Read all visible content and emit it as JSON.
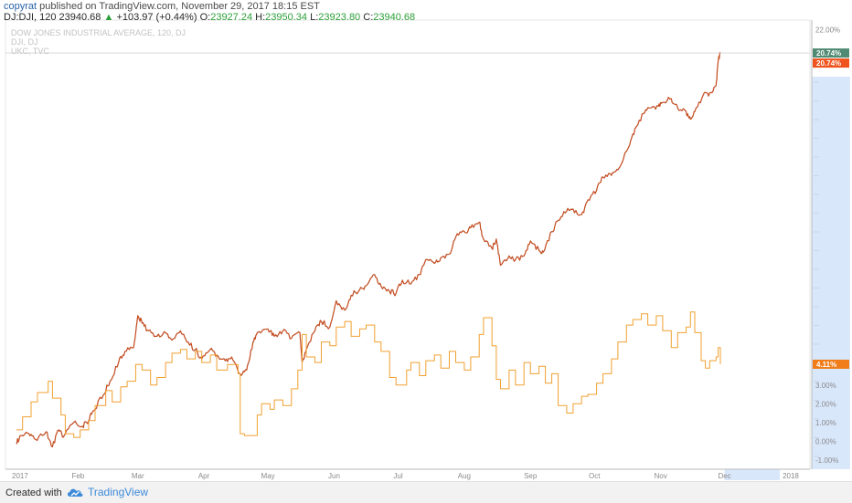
{
  "header": {
    "username": "copyrat",
    "published": "published on TradingView.com, November 29, 2017 18:15 EST",
    "symbol": "DJ:DJI, 120",
    "last": "23940.68",
    "change": "+103.97 (+0.44%)",
    "o_label": "O:",
    "o": "23927.24",
    "h_label": "H:",
    "h": "23950.34",
    "l_label": "L:",
    "l": "23923.80",
    "c_label": "C:",
    "c": "23940.68"
  },
  "legend": {
    "line1": "DOW JONES INDUSTRIAL AVERAGE, 120, DJ",
    "line2": "DJI, DJ",
    "line3": "UKC, TVC"
  },
  "footer": {
    "created_with": "Created with",
    "brand": "TradingView"
  },
  "colors": {
    "dji": "#b34018",
    "dji_highlight": "#f0642a",
    "ukc": "#f0a030",
    "badge_dji_1": "#4f8a73",
    "badge_dji_2": "#f0541e",
    "badge_ukc": "#f07d1a",
    "axis_highlight": "#d9e7fb"
  },
  "chart_data": {
    "type": "line",
    "x_labels": [
      "2017",
      "Feb",
      "Mar",
      "Apr",
      "May",
      "Jun",
      "Jul",
      "Aug",
      "Sep",
      "Oct",
      "Nov",
      "Dec",
      "2018"
    ],
    "y_tick_labels": [
      "22.00%",
      "-1.00%",
      "0.00%",
      "1.00%",
      "2.00%",
      "3.00%"
    ],
    "ylim": [
      -1.5,
      22.5
    ],
    "y_unit": "percent change",
    "grid": false,
    "series": [
      {
        "name": "DOW JONES INDUSTRIAL AVERAGE, 120, DJ",
        "color": "#b34018",
        "last_value_labels": [
          "20.74%",
          "20.74%"
        ],
        "points": [
          [
            "2017-01-03",
            -0.1
          ],
          [
            "2017-01-05",
            0.3
          ],
          [
            "2017-01-09",
            0.4
          ],
          [
            "2017-01-12",
            0.1
          ],
          [
            "2017-01-17",
            0.5
          ],
          [
            "2017-01-20",
            -0.3
          ],
          [
            "2017-01-23",
            0.6
          ],
          [
            "2017-01-25",
            0.2
          ],
          [
            "2017-01-30",
            1.0
          ],
          [
            "2017-02-03",
            0.8
          ],
          [
            "2017-02-06",
            1.1
          ],
          [
            "2017-02-08",
            1.6
          ],
          [
            "2017-02-13",
            2.5
          ],
          [
            "2017-02-16",
            3.2
          ],
          [
            "2017-02-20",
            4.2
          ],
          [
            "2017-02-23",
            4.8
          ],
          [
            "2017-02-27",
            5.0
          ],
          [
            "2017-03-01",
            6.7
          ],
          [
            "2017-03-03",
            6.3
          ],
          [
            "2017-03-06",
            5.9
          ],
          [
            "2017-03-10",
            5.6
          ],
          [
            "2017-03-14",
            5.8
          ],
          [
            "2017-03-17",
            5.4
          ],
          [
            "2017-03-21",
            5.9
          ],
          [
            "2017-03-24",
            5.3
          ],
          [
            "2017-03-28",
            4.9
          ],
          [
            "2017-03-31",
            4.4
          ],
          [
            "2017-04-04",
            4.9
          ],
          [
            "2017-04-07",
            4.6
          ],
          [
            "2017-04-11",
            4.3
          ],
          [
            "2017-04-14",
            4.5
          ],
          [
            "2017-04-18",
            3.6
          ],
          [
            "2017-04-21",
            3.8
          ],
          [
            "2017-04-24",
            5.3
          ],
          [
            "2017-04-26",
            5.8
          ],
          [
            "2017-05-01",
            6.0
          ],
          [
            "2017-05-04",
            5.6
          ],
          [
            "2017-05-08",
            5.9
          ],
          [
            "2017-05-12",
            5.5
          ],
          [
            "2017-05-16",
            5.8
          ],
          [
            "2017-05-17",
            4.2
          ],
          [
            "2017-05-19",
            4.9
          ],
          [
            "2017-05-23",
            5.9
          ],
          [
            "2017-05-26",
            6.4
          ],
          [
            "2017-05-30",
            6.1
          ],
          [
            "2017-06-02",
            7.5
          ],
          [
            "2017-06-06",
            7.0
          ],
          [
            "2017-06-09",
            7.8
          ],
          [
            "2017-06-13",
            8.1
          ],
          [
            "2017-06-16",
            8.3
          ],
          [
            "2017-06-20",
            8.9
          ],
          [
            "2017-06-23",
            8.3
          ],
          [
            "2017-06-27",
            8.0
          ],
          [
            "2017-06-30",
            7.9
          ],
          [
            "2017-07-03",
            8.6
          ],
          [
            "2017-07-07",
            8.4
          ],
          [
            "2017-07-11",
            8.9
          ],
          [
            "2017-07-14",
            9.7
          ],
          [
            "2017-07-18",
            9.5
          ],
          [
            "2017-07-21",
            9.8
          ],
          [
            "2017-07-25",
            10.0
          ],
          [
            "2017-07-28",
            10.9
          ],
          [
            "2017-08-01",
            11.2
          ],
          [
            "2017-08-04",
            11.4
          ],
          [
            "2017-08-08",
            11.7
          ],
          [
            "2017-08-10",
            10.8
          ],
          [
            "2017-08-14",
            10.3
          ],
          [
            "2017-08-16",
            10.8
          ],
          [
            "2017-08-18",
            9.4
          ],
          [
            "2017-08-22",
            9.9
          ],
          [
            "2017-08-25",
            9.7
          ],
          [
            "2017-08-29",
            9.9
          ],
          [
            "2017-09-01",
            10.7
          ],
          [
            "2017-09-05",
            10.2
          ],
          [
            "2017-09-07",
            10.1
          ],
          [
            "2017-09-11",
            11.2
          ],
          [
            "2017-09-14",
            11.8
          ],
          [
            "2017-09-18",
            12.3
          ],
          [
            "2017-09-21",
            12.4
          ],
          [
            "2017-09-25",
            12.1
          ],
          [
            "2017-09-28",
            12.9
          ],
          [
            "2017-10-02",
            13.4
          ],
          [
            "2017-10-05",
            14.1
          ],
          [
            "2017-10-09",
            14.2
          ],
          [
            "2017-10-12",
            14.5
          ],
          [
            "2017-10-17",
            15.7
          ],
          [
            "2017-10-20",
            16.7
          ],
          [
            "2017-10-24",
            17.5
          ],
          [
            "2017-10-27",
            17.8
          ],
          [
            "2017-10-31",
            17.9
          ],
          [
            "2017-11-02",
            18.1
          ],
          [
            "2017-11-06",
            18.3
          ],
          [
            "2017-11-09",
            17.8
          ],
          [
            "2017-11-13",
            17.6
          ],
          [
            "2017-11-15",
            17.2
          ],
          [
            "2017-11-17",
            17.6
          ],
          [
            "2017-11-21",
            18.5
          ],
          [
            "2017-11-24",
            18.6
          ],
          [
            "2017-11-27",
            19.0
          ],
          [
            "2017-11-28",
            20.3
          ],
          [
            "2017-11-29",
            20.74
          ]
        ]
      },
      {
        "name": "UKC, TVC",
        "color": "#f0a030",
        "last_value_labels": [
          "4.11%"
        ],
        "points": [
          [
            "2017-01-03",
            0.6
          ],
          [
            "2017-01-06",
            1.3
          ],
          [
            "2017-01-10",
            2.1
          ],
          [
            "2017-01-13",
            2.6
          ],
          [
            "2017-01-18",
            3.2
          ],
          [
            "2017-01-20",
            2.3
          ],
          [
            "2017-01-24",
            1.4
          ],
          [
            "2017-01-26",
            0.4
          ],
          [
            "2017-01-30",
            0.2
          ],
          [
            "2017-02-02",
            0.6
          ],
          [
            "2017-02-06",
            1.1
          ],
          [
            "2017-02-09",
            1.9
          ],
          [
            "2017-02-14",
            2.7
          ],
          [
            "2017-02-17",
            2.1
          ],
          [
            "2017-02-21",
            2.9
          ],
          [
            "2017-02-24",
            3.2
          ],
          [
            "2017-02-28",
            4.1
          ],
          [
            "2017-03-03",
            3.8
          ],
          [
            "2017-03-07",
            3.0
          ],
          [
            "2017-03-10",
            3.4
          ],
          [
            "2017-03-14",
            4.2
          ],
          [
            "2017-03-17",
            4.7
          ],
          [
            "2017-03-21",
            4.9
          ],
          [
            "2017-03-24",
            4.4
          ],
          [
            "2017-03-28",
            4.8
          ],
          [
            "2017-03-31",
            4.2
          ],
          [
            "2017-04-04",
            4.6
          ],
          [
            "2017-04-07",
            3.8
          ],
          [
            "2017-04-12",
            4.1
          ],
          [
            "2017-04-17",
            3.6
          ],
          [
            "2017-04-18",
            0.4
          ],
          [
            "2017-04-20",
            0.3
          ],
          [
            "2017-04-24",
            0.3
          ],
          [
            "2017-04-26",
            1.4
          ],
          [
            "2017-04-28",
            2.0
          ],
          [
            "2017-05-02",
            1.7
          ],
          [
            "2017-05-04",
            2.2
          ],
          [
            "2017-05-08",
            1.9
          ],
          [
            "2017-05-12",
            2.8
          ],
          [
            "2017-05-15",
            3.8
          ],
          [
            "2017-05-17",
            5.7
          ],
          [
            "2017-05-19",
            4.5
          ],
          [
            "2017-05-23",
            4.2
          ],
          [
            "2017-05-26",
            5.3
          ],
          [
            "2017-05-30",
            5.1
          ],
          [
            "2017-06-02",
            6.1
          ],
          [
            "2017-06-06",
            6.4
          ],
          [
            "2017-06-09",
            5.6
          ],
          [
            "2017-06-13",
            6.0
          ],
          [
            "2017-06-16",
            6.2
          ],
          [
            "2017-06-20",
            5.3
          ],
          [
            "2017-06-23",
            4.8
          ],
          [
            "2017-06-27",
            3.4
          ],
          [
            "2017-06-30",
            3.0
          ],
          [
            "2017-07-05",
            3.8
          ],
          [
            "2017-07-07",
            4.2
          ],
          [
            "2017-07-11",
            3.5
          ],
          [
            "2017-07-14",
            4.3
          ],
          [
            "2017-07-18",
            4.6
          ],
          [
            "2017-07-21",
            3.9
          ],
          [
            "2017-07-25",
            4.8
          ],
          [
            "2017-07-28",
            4.2
          ],
          [
            "2017-08-01",
            3.8
          ],
          [
            "2017-08-04",
            4.5
          ],
          [
            "2017-08-08",
            5.7
          ],
          [
            "2017-08-10",
            6.6
          ],
          [
            "2017-08-14",
            5.1
          ],
          [
            "2017-08-16",
            3.3
          ],
          [
            "2017-08-18",
            2.8
          ],
          [
            "2017-08-22",
            3.8
          ],
          [
            "2017-08-25",
            3.0
          ],
          [
            "2017-08-29",
            4.2
          ],
          [
            "2017-09-01",
            3.6
          ],
          [
            "2017-09-05",
            4.0
          ],
          [
            "2017-09-08",
            3.1
          ],
          [
            "2017-09-11",
            3.6
          ],
          [
            "2017-09-14",
            1.9
          ],
          [
            "2017-09-18",
            1.5
          ],
          [
            "2017-09-21",
            2.0
          ],
          [
            "2017-09-25",
            2.4
          ],
          [
            "2017-09-28",
            2.5
          ],
          [
            "2017-10-02",
            3.1
          ],
          [
            "2017-10-05",
            3.6
          ],
          [
            "2017-10-09",
            4.4
          ],
          [
            "2017-10-12",
            5.3
          ],
          [
            "2017-10-16",
            6.2
          ],
          [
            "2017-10-19",
            6.5
          ],
          [
            "2017-10-23",
            6.8
          ],
          [
            "2017-10-26",
            6.2
          ],
          [
            "2017-10-30",
            6.7
          ],
          [
            "2017-11-02",
            5.9
          ],
          [
            "2017-11-06",
            5.0
          ],
          [
            "2017-11-09",
            5.8
          ],
          [
            "2017-11-13",
            6.1
          ],
          [
            "2017-11-15",
            6.9
          ],
          [
            "2017-11-17",
            5.8
          ],
          [
            "2017-11-20",
            4.3
          ],
          [
            "2017-11-22",
            3.9
          ],
          [
            "2017-11-24",
            4.3
          ],
          [
            "2017-11-27",
            4.5
          ],
          [
            "2017-11-28",
            5.0
          ],
          [
            "2017-11-29",
            4.11
          ]
        ]
      }
    ]
  }
}
